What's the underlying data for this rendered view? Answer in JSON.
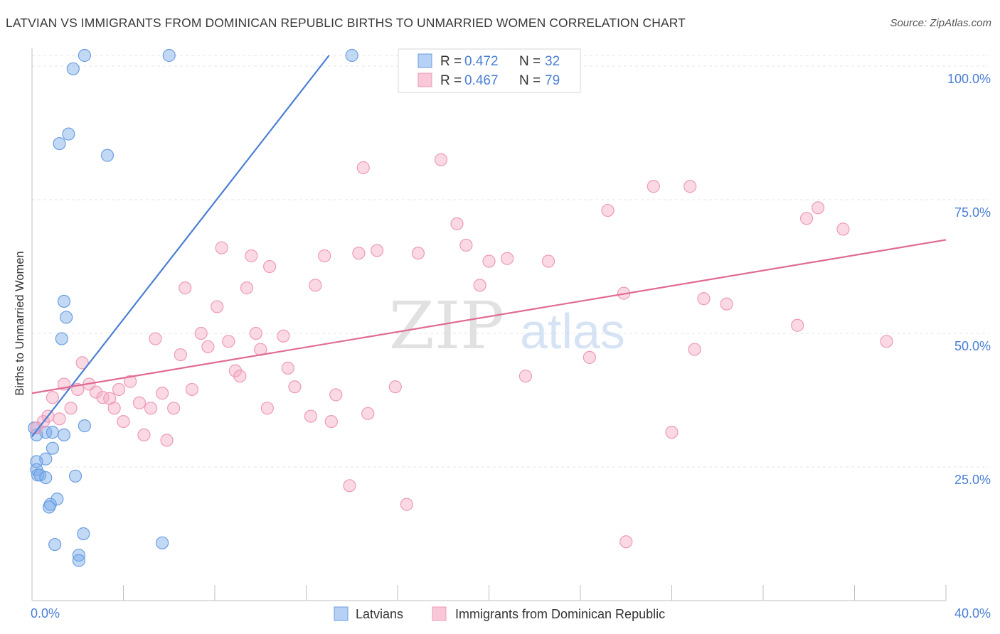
{
  "title": "LATVIAN VS IMMIGRANTS FROM DOMINICAN REPUBLIC BIRTHS TO UNMARRIED WOMEN CORRELATION CHART",
  "source": "Source: ZipAtlas.com",
  "watermark": {
    "zip": "ZIP",
    "atlas": "atlas"
  },
  "colors": {
    "blue": "#4a7fd4",
    "blue_fill": "rgba(120,170,235,0.45)",
    "blue_stroke": "#6b9ee0",
    "pink": "#e06a94",
    "pink_fill": "rgba(245,170,195,0.45)",
    "pink_stroke": "#ee9ab8",
    "tick_label": "#4a7fd4"
  },
  "legend": {
    "r_label": "R =",
    "n_label": "N =",
    "rows": [
      {
        "series": "latvians",
        "r": "0.472",
        "n": "32"
      },
      {
        "series": "dominican",
        "r": "0.467",
        "n": "79"
      }
    ]
  },
  "chart_data": {
    "type": "scatter",
    "title": "LATVIAN VS IMMIGRANTS FROM DOMINICAN REPUBLIC BIRTHS TO UNMARRIED WOMEN CORRELATION CHART",
    "xlabel": "",
    "ylabel": "Births to Unmarried Women",
    "xlim": [
      0,
      40
    ],
    "ylim": [
      0,
      103
    ],
    "x_tick_labels": [
      {
        "value": 0,
        "label": "0.0%"
      },
      {
        "value": 40,
        "label": "40.0%"
      }
    ],
    "y_tick_labels": [
      {
        "value": 25,
        "label": "25.0%"
      },
      {
        "value": 50,
        "label": "50.0%"
      },
      {
        "value": 75,
        "label": "75.0%"
      },
      {
        "value": 100,
        "label": "100.0%"
      }
    ],
    "grid": true,
    "legend_position": "bottom-center",
    "series": [
      {
        "name": "Latvians",
        "key": "latvians",
        "points": [
          [
            2.3,
            102
          ],
          [
            6,
            102
          ],
          [
            14,
            102
          ],
          [
            1.8,
            99.5
          ],
          [
            1.6,
            87.3
          ],
          [
            1.2,
            85.5
          ],
          [
            3.3,
            83.3
          ],
          [
            1.4,
            56
          ],
          [
            1.5,
            53
          ],
          [
            1.3,
            49
          ],
          [
            2.3,
            32.7
          ],
          [
            0.6,
            31.5
          ],
          [
            0.9,
            31.5
          ],
          [
            1.4,
            31
          ],
          [
            0.2,
            31
          ],
          [
            0.9,
            28.5
          ],
          [
            0.6,
            26.5
          ],
          [
            0.2,
            26
          ],
          [
            0.2,
            24.5
          ],
          [
            0.25,
            23.5
          ],
          [
            0.35,
            23.5
          ],
          [
            0.6,
            23
          ],
          [
            1.9,
            23.3
          ],
          [
            1.1,
            19
          ],
          [
            0.8,
            18
          ],
          [
            0.75,
            17.5
          ],
          [
            2.25,
            12.5
          ],
          [
            1.0,
            10.5
          ],
          [
            5.7,
            10.8
          ],
          [
            2.05,
            8.5
          ],
          [
            2.05,
            7.5
          ],
          [
            0.1,
            32.3
          ]
        ],
        "trend": [
          [
            0,
            30.7
          ],
          [
            13,
            102
          ]
        ]
      },
      {
        "name": "Immigrants from Dominican Republic",
        "key": "dominican",
        "points": [
          [
            0.5,
            33.5
          ],
          [
            0.7,
            34.5
          ],
          [
            0.9,
            38
          ],
          [
            1.2,
            34
          ],
          [
            1.4,
            40.5
          ],
          [
            1.7,
            36
          ],
          [
            2.0,
            39.5
          ],
          [
            2.2,
            44.5
          ],
          [
            2.5,
            40.5
          ],
          [
            2.8,
            39
          ],
          [
            3.1,
            38
          ],
          [
            3.4,
            37.8
          ],
          [
            3.6,
            36
          ],
          [
            3.8,
            39.5
          ],
          [
            4.0,
            33.5
          ],
          [
            4.3,
            41
          ],
          [
            4.7,
            37
          ],
          [
            4.9,
            31
          ],
          [
            5.2,
            36
          ],
          [
            5.4,
            49
          ],
          [
            5.7,
            38.8
          ],
          [
            5.9,
            30
          ],
          [
            6.2,
            36
          ],
          [
            6.5,
            46
          ],
          [
            6.7,
            58.5
          ],
          [
            7.0,
            39.5
          ],
          [
            7.4,
            50
          ],
          [
            7.7,
            47.5
          ],
          [
            8.1,
            55
          ],
          [
            8.3,
            66
          ],
          [
            8.6,
            48.5
          ],
          [
            8.9,
            43
          ],
          [
            9.1,
            42
          ],
          [
            9.4,
            58.5
          ],
          [
            9.6,
            64.5
          ],
          [
            9.8,
            50
          ],
          [
            10.0,
            47
          ],
          [
            10.3,
            36
          ],
          [
            10.4,
            62.5
          ],
          [
            11.0,
            49.5
          ],
          [
            11.2,
            43.5
          ],
          [
            11.5,
            40
          ],
          [
            12.2,
            34.5
          ],
          [
            12.4,
            59
          ],
          [
            12.8,
            64.5
          ],
          [
            13.1,
            33.5
          ],
          [
            13.3,
            38.5
          ],
          [
            13.9,
            21.5
          ],
          [
            14.3,
            65
          ],
          [
            14.5,
            81
          ],
          [
            14.7,
            35
          ],
          [
            15.1,
            65.5
          ],
          [
            15.9,
            40
          ],
          [
            16.4,
            18
          ],
          [
            16.9,
            65
          ],
          [
            17.9,
            82.5
          ],
          [
            18.6,
            70.5
          ],
          [
            19.0,
            66.5
          ],
          [
            19.6,
            59
          ],
          [
            20.0,
            63.5
          ],
          [
            20.8,
            64
          ],
          [
            21.6,
            42
          ],
          [
            22.6,
            63.5
          ],
          [
            24.4,
            45.5
          ],
          [
            25.2,
            73
          ],
          [
            25.9,
            57.5
          ],
          [
            26.0,
            11
          ],
          [
            27.2,
            77.5
          ],
          [
            28.0,
            31.5
          ],
          [
            28.8,
            77.5
          ],
          [
            29.0,
            47
          ],
          [
            29.4,
            56.5
          ],
          [
            30.4,
            55.5
          ],
          [
            33.5,
            51.5
          ],
          [
            33.9,
            71.5
          ],
          [
            34.4,
            73.5
          ],
          [
            35.5,
            69.5
          ],
          [
            37.4,
            48.5
          ],
          [
            0.2,
            32.3
          ]
        ],
        "trend": [
          [
            0,
            38.8
          ],
          [
            40,
            67.5
          ]
        ]
      }
    ]
  },
  "bottom_legend": [
    {
      "series": "latvians",
      "label": "Latvians"
    },
    {
      "series": "dominican",
      "label": "Immigrants from Dominican Republic"
    }
  ]
}
